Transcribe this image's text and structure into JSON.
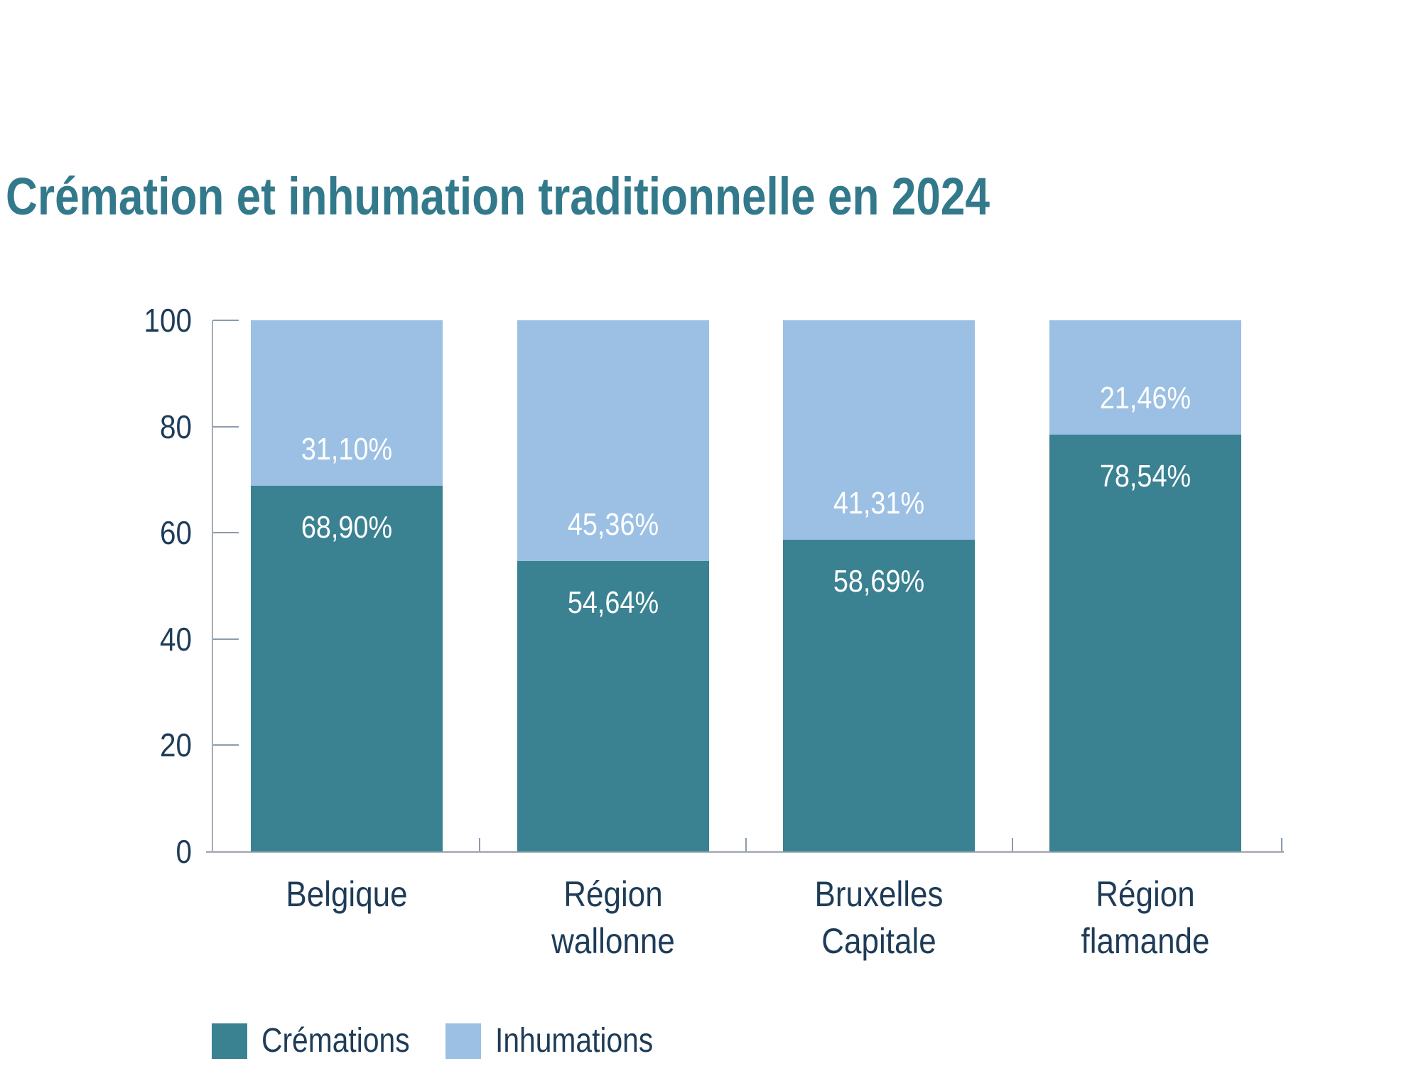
{
  "title": "Crémation et inhumation traditionnelle en 2024",
  "colors": {
    "cremations": "#3A8191",
    "inhumations": "#9BC0E4",
    "title_text": "#33798C",
    "axis_text": "#1E3C58",
    "axis_line": "#A3ACB8",
    "tick_line": "#8C9BAD",
    "bar_label_text": "#FFFFFF",
    "background": "#FFFFFF"
  },
  "chart_data": {
    "type": "bar",
    "stacked": true,
    "unit": "%",
    "title": "Crémation et inhumation traditionnelle en 2024",
    "categories": [
      "Belgique",
      "Région\nwallonne",
      "Bruxelles\nCapitale",
      "Région\nflamande"
    ],
    "series": [
      {
        "name": "Crémations",
        "color": "#3A8191",
        "values": [
          68.9,
          54.64,
          58.69,
          78.54
        ],
        "labels": [
          "68,90%",
          "54,64%",
          "58,69%",
          "78,54%"
        ]
      },
      {
        "name": "Inhumations",
        "color": "#9BC0E4",
        "values": [
          31.1,
          45.36,
          41.31,
          21.46
        ],
        "labels": [
          "31,10%",
          "45,36%",
          "41,31%",
          "21,46%"
        ]
      }
    ],
    "ylim": [
      0,
      100
    ],
    "yticks": [
      0,
      20,
      40,
      60,
      80,
      100
    ],
    "grid": false,
    "legend_position": "bottom-left"
  },
  "legend": {
    "items": [
      {
        "label": "Crémations",
        "color": "#3A8191"
      },
      {
        "label": "Inhumations",
        "color": "#9BC0E4"
      }
    ]
  }
}
